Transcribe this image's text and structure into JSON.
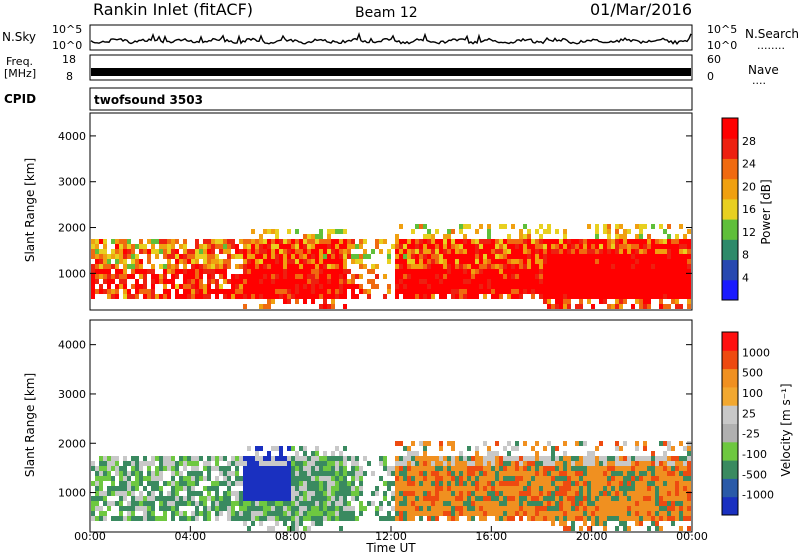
{
  "header": {
    "station": "Rankin Inlet (fitACF)",
    "beam": "Beam 12",
    "date": "01/Mar/2016"
  },
  "nsky_panel": {
    "left_label": "N.Sky",
    "right_label": "N.Search",
    "left_ticks": [
      "10^5",
      "10^0"
    ],
    "right_ticks": [
      "10^5",
      "10^0"
    ],
    "right_dots": "........"
  },
  "freq_panel": {
    "left_label_1": "Freq.",
    "left_label_2": "[MHz]",
    "left_ticks": [
      "18",
      "8"
    ],
    "right_label": "Nave",
    "right_ticks": [
      "60",
      "0"
    ],
    "right_dots": "...."
  },
  "cpid_panel": {
    "label": "CPID",
    "value": "twofsound 3503"
  },
  "colors": {
    "power_scale": [
      "#1a1aff",
      "#2848b0",
      "#2e8a6a",
      "#5fbf3a",
      "#e8d020",
      "#f0a010",
      "#f06a10",
      "#ee2010",
      "#ff0000"
    ],
    "velocity_scale": [
      "#ff1010",
      "#ee4a10",
      "#f09020",
      "#f2a830",
      "#c8c8c8",
      "#b0b0b0",
      "#6ec840",
      "#3a8a60",
      "#2a5aa8",
      "#1a30c0"
    ]
  },
  "chart_data": [
    {
      "type": "heatmap",
      "name": "power",
      "xlabel": "",
      "ylabel": "Slant Range [km]",
      "y_ticks": [
        "1000",
        "2000",
        "3000",
        "4000"
      ],
      "ylim": [
        200,
        4500
      ],
      "colorbar_label": "Power [dB]",
      "colorbar_ticks": [
        "4",
        "8",
        "12",
        "16",
        "20",
        "24",
        "28"
      ],
      "colorbar_range": [
        0,
        32
      ]
    },
    {
      "type": "heatmap",
      "name": "velocity",
      "xlabel": "Time UT",
      "x_ticks": [
        "00:00",
        "04:00",
        "08:00",
        "12:00",
        "16:00",
        "20:00",
        "00:00"
      ],
      "ylabel": "Slant Range [km]",
      "y_ticks": [
        "1000",
        "2000",
        "3000",
        "4000"
      ],
      "ylim": [
        200,
        4500
      ],
      "colorbar_label": "Velocity [m s⁻¹]",
      "colorbar_ticks": [
        "1000",
        "500",
        "100",
        "25",
        "-25",
        "-100",
        "-500",
        "-1000"
      ]
    }
  ]
}
